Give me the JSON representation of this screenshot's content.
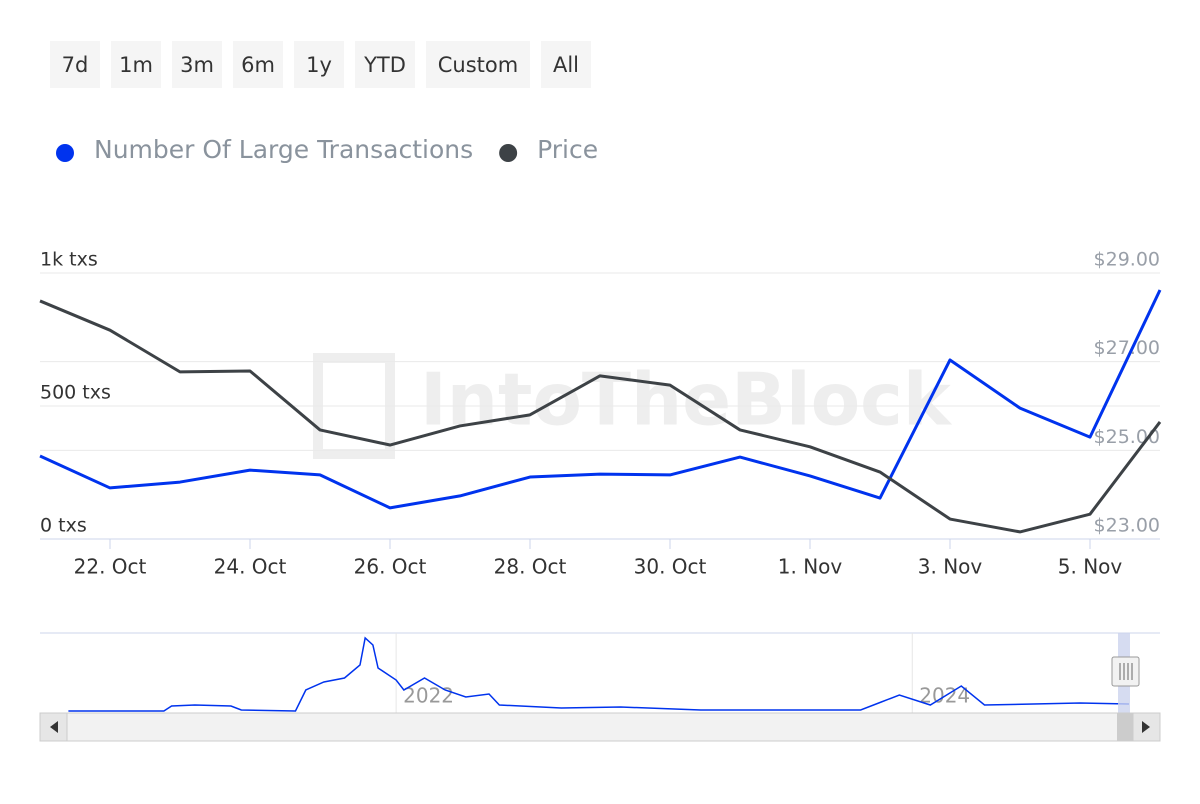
{
  "range_buttons": [
    "7d",
    "1m",
    "3m",
    "6m",
    "1y",
    "YTD",
    "Custom",
    "All"
  ],
  "watermark": "IntoTheBlock",
  "chart_data": {
    "type": "line",
    "categories": [
      null,
      "22. Oct",
      null,
      "24. Oct",
      null,
      "26. Oct",
      null,
      "28. Oct",
      null,
      "30. Oct",
      null,
      "1. Nov",
      null,
      "3. Nov",
      null,
      "5. Nov",
      null
    ],
    "series": [
      {
        "name": "Number Of Large Transactions",
        "color": "#0033ee",
        "axis": "y",
        "values": [
          312,
          192,
          214,
          259,
          241,
          117,
          162,
          233,
          244,
          241,
          308,
          237,
          154,
          673,
          492,
          383,
          936
        ]
      },
      {
        "name": "Price",
        "color": "#3d4246",
        "axis": "y2",
        "values": [
          28.37,
          27.71,
          26.77,
          26.79,
          25.46,
          25.12,
          25.55,
          25.8,
          26.68,
          26.47,
          25.46,
          25.08,
          24.51,
          23.45,
          23.16,
          23.56,
          25.64
        ]
      }
    ],
    "ylim": [
      0,
      1000
    ],
    "yticks": [
      {
        "value": 0,
        "label": "0 txs"
      },
      {
        "value": 500,
        "label": "500 txs"
      },
      {
        "value": 1000,
        "label": "1k txs"
      }
    ],
    "y2lim": [
      23,
      29
    ],
    "y2ticks": [
      {
        "value": 23,
        "label": "$23.00"
      },
      {
        "value": 25,
        "label": "$25.00"
      },
      {
        "value": 27,
        "label": "$27.00"
      },
      {
        "value": 29,
        "label": "$29.00"
      }
    ],
    "grid": true,
    "legend": "top-left",
    "navigator": {
      "color": "#0033ee",
      "x": [
        2020.73,
        2021.1,
        2021.13,
        2021.22,
        2021.36,
        2021.4,
        2021.61,
        2021.65,
        2021.72,
        2021.8,
        2021.86,
        2021.88,
        2021.91,
        2021.93,
        2022.0,
        2022.03,
        2022.11,
        2022.19,
        2022.27,
        2022.36,
        2022.4,
        2022.64,
        2022.87,
        2023.18,
        2023.8,
        2023.88,
        2023.95,
        2024.07,
        2024.19,
        2024.28,
        2024.65,
        2024.84
      ],
      "values": [
        0,
        0,
        250,
        300,
        250,
        50,
        0,
        1050,
        1450,
        1650,
        2300,
        3650,
        3300,
        2150,
        1550,
        1050,
        1650,
        1050,
        700,
        850,
        300,
        150,
        200,
        50,
        50,
        450,
        800,
        300,
        1250,
        300,
        400,
        350
      ],
      "xlim": [
        2020.62,
        2024.96
      ],
      "ylim": [
        0,
        3800
      ],
      "xticks": [
        2022,
        2024
      ]
    }
  }
}
